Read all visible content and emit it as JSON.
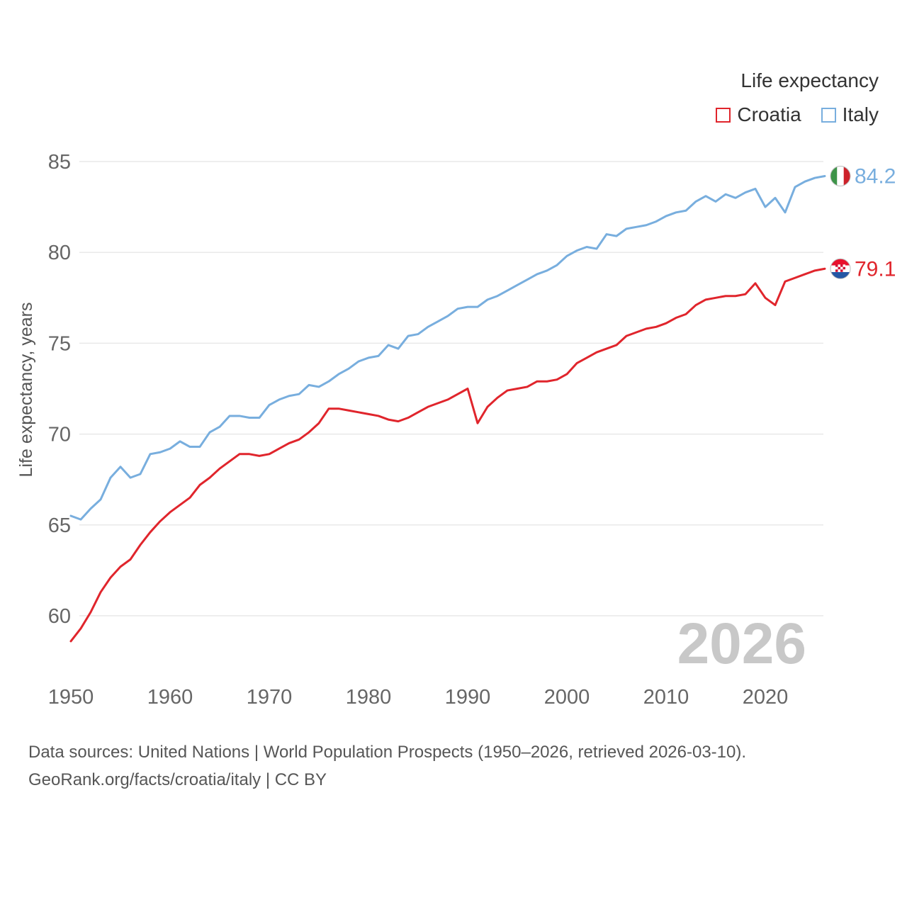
{
  "legend": {
    "title": "Life expectancy"
  },
  "axis": {
    "y_label": "Life expectancy, years",
    "y_ticks": [
      60,
      65,
      70,
      75,
      80,
      85
    ],
    "x_ticks": [
      1950,
      1960,
      1970,
      1980,
      1990,
      2000,
      2010,
      2020
    ]
  },
  "watermark": "2026",
  "footer": {
    "line1": "Data sources: United Nations | World Population Prospects (1950–2026, retrieved 2026-03-10).",
    "line2": "GeoRank.org/facts/croatia/italy | CC BY"
  },
  "chart_data": {
    "type": "line",
    "title": "Life expectancy",
    "xlabel": "",
    "ylabel": "Life expectancy, years",
    "ylim": [
      57.5,
      86
    ],
    "x_range": [
      1950,
      2026
    ],
    "grid": true,
    "legend_position": "top-right",
    "x": [
      1950,
      1951,
      1952,
      1953,
      1954,
      1955,
      1956,
      1957,
      1958,
      1959,
      1960,
      1961,
      1962,
      1963,
      1964,
      1965,
      1966,
      1967,
      1968,
      1969,
      1970,
      1971,
      1972,
      1973,
      1974,
      1975,
      1976,
      1977,
      1978,
      1979,
      1980,
      1981,
      1982,
      1983,
      1984,
      1985,
      1986,
      1987,
      1988,
      1989,
      1990,
      1991,
      1992,
      1993,
      1994,
      1995,
      1996,
      1997,
      1998,
      1999,
      2000,
      2001,
      2002,
      2003,
      2004,
      2005,
      2006,
      2007,
      2008,
      2009,
      2010,
      2011,
      2012,
      2013,
      2014,
      2015,
      2016,
      2017,
      2018,
      2019,
      2020,
      2021,
      2022,
      2023,
      2024,
      2025,
      2026
    ],
    "series": [
      {
        "name": "Croatia",
        "color": "#e0252c",
        "end_label": "79.1",
        "flag": "croatia",
        "values": [
          58.6,
          59.3,
          60.2,
          61.3,
          62.1,
          62.7,
          63.1,
          63.9,
          64.6,
          65.2,
          65.7,
          66.1,
          66.5,
          67.2,
          67.6,
          68.1,
          68.5,
          68.9,
          68.9,
          68.8,
          68.9,
          69.2,
          69.5,
          69.7,
          70.1,
          70.6,
          71.4,
          71.4,
          71.3,
          71.2,
          71.1,
          71.0,
          70.8,
          70.7,
          70.9,
          71.2,
          71.5,
          71.7,
          71.9,
          72.2,
          72.5,
          70.6,
          71.5,
          72.0,
          72.4,
          72.5,
          72.6,
          72.9,
          72.9,
          73.0,
          73.3,
          73.9,
          74.2,
          74.5,
          74.7,
          74.9,
          75.4,
          75.6,
          75.8,
          75.9,
          76.1,
          76.4,
          76.6,
          77.1,
          77.4,
          77.5,
          77.6,
          77.6,
          77.7,
          78.3,
          77.5,
          77.1,
          78.4,
          78.6,
          78.8,
          79.0,
          79.1
        ]
      },
      {
        "name": "Italy",
        "color": "#78aede",
        "end_label": "84.2",
        "flag": "italy",
        "values": [
          65.5,
          65.3,
          65.9,
          66.4,
          67.6,
          68.2,
          67.6,
          67.8,
          68.9,
          69.0,
          69.2,
          69.6,
          69.3,
          69.3,
          70.1,
          70.4,
          71.0,
          71.0,
          70.9,
          70.9,
          71.6,
          71.9,
          72.1,
          72.2,
          72.7,
          72.6,
          72.9,
          73.3,
          73.6,
          74.0,
          74.2,
          74.3,
          74.9,
          74.7,
          75.4,
          75.5,
          75.9,
          76.2,
          76.5,
          76.9,
          77.0,
          77.0,
          77.4,
          77.6,
          77.9,
          78.2,
          78.5,
          78.8,
          79.0,
          79.3,
          79.8,
          80.1,
          80.3,
          80.2,
          81.0,
          80.9,
          81.3,
          81.4,
          81.5,
          81.7,
          82.0,
          82.2,
          82.3,
          82.8,
          83.1,
          82.8,
          83.2,
          83.0,
          83.3,
          83.5,
          82.5,
          83.0,
          82.2,
          83.6,
          83.9,
          84.1,
          84.2
        ]
      }
    ]
  }
}
